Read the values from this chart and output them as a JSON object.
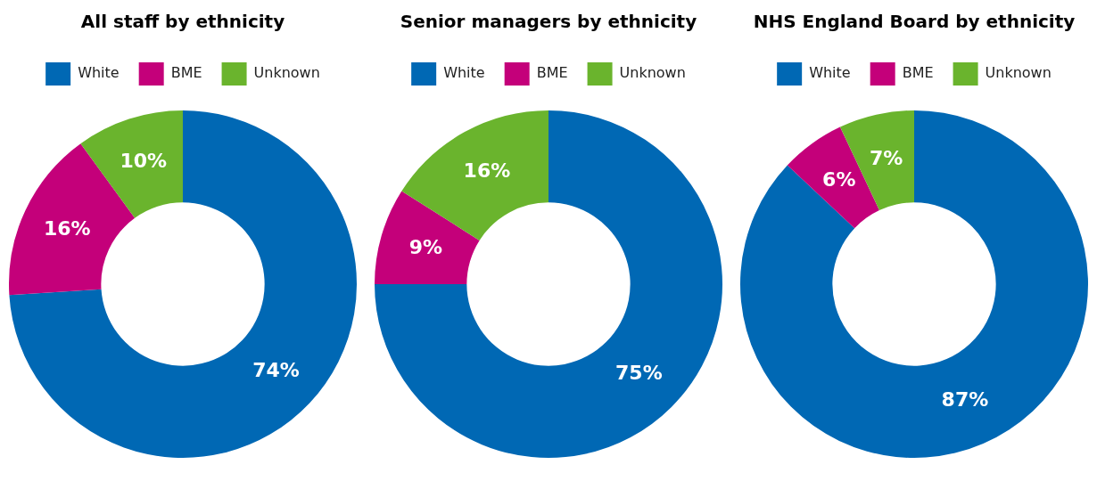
{
  "chart_data": [
    {
      "type": "donut",
      "title": "All staff by ethnicity",
      "categories": [
        "White",
        "BME",
        "Unknown"
      ],
      "values": [
        74,
        16,
        10
      ],
      "colors": [
        "#0068b4",
        "#c4007a",
        "#6ab42d"
      ],
      "value_labels": [
        "74%",
        "16%",
        "10%"
      ],
      "legend": "top"
    },
    {
      "type": "donut",
      "title": "Senior managers by ethnicity",
      "categories": [
        "White",
        "BME",
        "Unknown"
      ],
      "values": [
        75,
        9,
        16
      ],
      "colors": [
        "#0068b4",
        "#c4007a",
        "#6ab42d"
      ],
      "value_labels": [
        "75%",
        "9%",
        "16%"
      ],
      "legend": "top"
    },
    {
      "type": "donut",
      "title": "NHS England Board by ethnicity",
      "categories": [
        "White",
        "BME",
        "Unknown"
      ],
      "values": [
        87,
        6,
        7
      ],
      "colors": [
        "#0068b4",
        "#c4007a",
        "#6ab42d"
      ],
      "value_labels": [
        "87%",
        "6%",
        "7%"
      ],
      "legend": "top"
    }
  ]
}
